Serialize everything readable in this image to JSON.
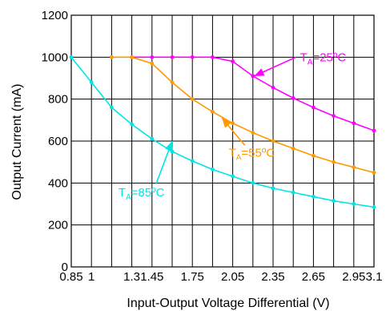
{
  "chart_data": {
    "type": "line",
    "xlabel": "Input-Output Voltage Differential (V)",
    "ylabel": "Output Current (mA)",
    "xlim": [
      0.85,
      3.1
    ],
    "ylim": [
      0,
      1200
    ],
    "x_ticks": [
      {
        "value": 0.85,
        "label": "0.85"
      },
      {
        "value": 1.0,
        "label": "1"
      },
      {
        "value": 1.3,
        "label": "1.3"
      },
      {
        "value": 1.45,
        "label": "1.45"
      },
      {
        "value": 1.75,
        "label": "1.75"
      },
      {
        "value": 2.05,
        "label": "2.05"
      },
      {
        "value": 2.35,
        "label": "2.35"
      },
      {
        "value": 2.65,
        "label": "2.65"
      },
      {
        "value": 2.95,
        "label": "2.95"
      },
      {
        "value": 3.1,
        "label": "3.1"
      }
    ],
    "x_grid": [
      0.85,
      1.0,
      1.15,
      1.3,
      1.45,
      1.6,
      1.75,
      1.9,
      2.05,
      2.2,
      2.35,
      2.5,
      2.65,
      2.8,
      2.95,
      3.1
    ],
    "y_ticks": [
      0,
      200,
      400,
      600,
      800,
      1000,
      1200
    ],
    "grid": true,
    "series": [
      {
        "name": "TA=25°C",
        "color": "#ff00ff",
        "x": [
          1.3,
          1.45,
          1.6,
          1.75,
          1.9,
          2.05,
          2.2,
          2.35,
          2.5,
          2.65,
          2.8,
          2.95,
          3.1
        ],
        "y": [
          1000,
          1000,
          1000,
          1000,
          1000,
          980,
          910,
          855,
          805,
          760,
          720,
          685,
          650
        ]
      },
      {
        "name": "TA=55°C",
        "color": "#ff9900",
        "x": [
          1.15,
          1.3,
          1.45,
          1.6,
          1.75,
          1.9,
          2.05,
          2.2,
          2.35,
          2.5,
          2.65,
          2.8,
          2.95,
          3.1
        ],
        "y": [
          1000,
          1000,
          970,
          880,
          800,
          740,
          685,
          640,
          600,
          565,
          530,
          500,
          475,
          450
        ]
      },
      {
        "name": "TA=85°C",
        "color": "#00e5e5",
        "x": [
          0.85,
          1.0,
          1.15,
          1.3,
          1.45,
          1.6,
          1.75,
          1.9,
          2.05,
          2.2,
          2.35,
          2.5,
          2.65,
          2.8,
          2.95,
          3.1
        ],
        "y": [
          1000,
          880,
          760,
          680,
          610,
          550,
          505,
          465,
          432,
          400,
          375,
          355,
          335,
          315,
          300,
          285
        ]
      }
    ],
    "annotations": [
      {
        "series": 0,
        "main": "T",
        "sub": "A",
        "rest": "=25ºC",
        "color": "#ff00ff",
        "text_at": [
          2.55,
          1000
        ],
        "arrow_from": [
          2.52,
          1000
        ],
        "arrow_to": [
          2.21,
          910
        ]
      },
      {
        "series": 1,
        "main": "T",
        "sub": "A",
        "rest": "=55ºC",
        "color": "#ff9900",
        "text_at": [
          2.02,
          545
        ],
        "arrow_from": [
          2.14,
          580
        ],
        "arrow_to": [
          1.97,
          710
        ]
      },
      {
        "series": 2,
        "main": "T",
        "sub": "A",
        "rest": "=85ºC",
        "color": "#00e5e5",
        "text_at": [
          1.2,
          355
        ],
        "arrow_from": [
          1.48,
          395
        ],
        "arrow_to": [
          1.6,
          600
        ]
      }
    ]
  }
}
